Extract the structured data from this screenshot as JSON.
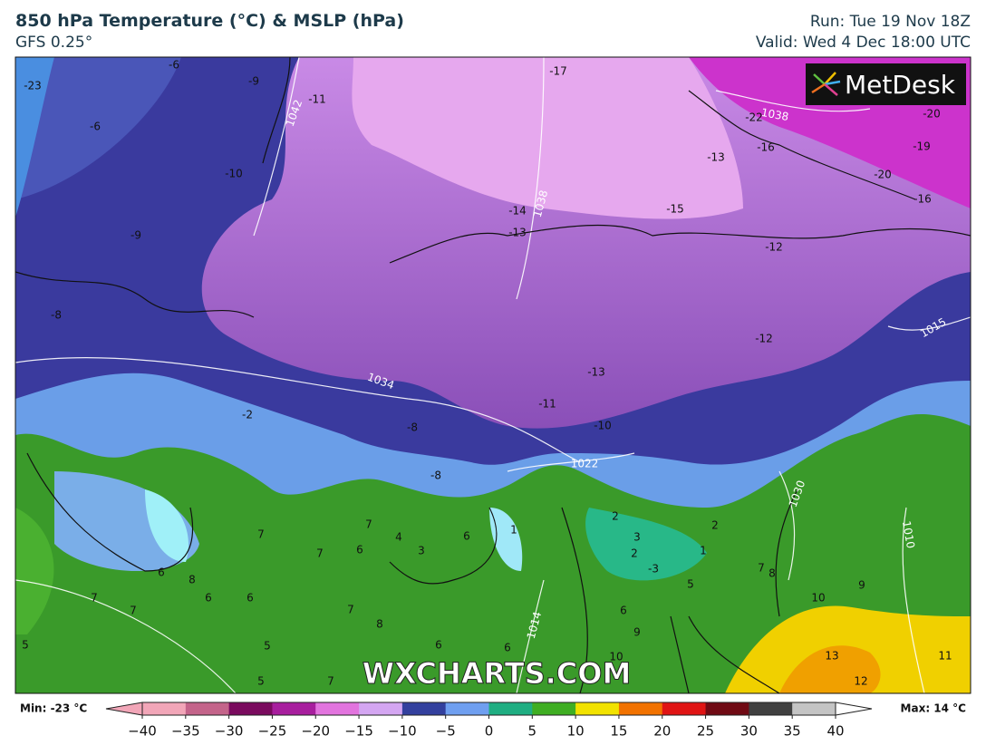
{
  "header": {
    "title": "850 hPa Temperature (°C) & MSLP (hPa)",
    "subtitle": "GFS 0.25°",
    "run": "Run: Tue 19 Nov 18Z",
    "valid": "Valid: Wed 4 Dec 18:00 UTC"
  },
  "logo": "MetDesk",
  "watermark": "WXCHARTS.COM",
  "map_labels": [
    "-6",
    "-9",
    "-23",
    "-11",
    "-6",
    "-10",
    "-17",
    "-22",
    "-20",
    "-19",
    "-16",
    "-13",
    "-20",
    "-16",
    "-14",
    "-15",
    "-13",
    "-12",
    "-9",
    "-8",
    "-12",
    "-13",
    "-11",
    "-10",
    "-8",
    "-2",
    "-8",
    "7",
    "7",
    "7",
    "6",
    "4",
    "3",
    "6",
    "1",
    "2",
    "2",
    "3",
    "2",
    "1",
    "-3",
    "8",
    "6",
    "5",
    "7",
    "8",
    "10",
    "9",
    "7",
    "7",
    "6",
    "6",
    "7",
    "8",
    "6",
    "9",
    "5",
    "5",
    "6",
    "6",
    "10",
    "13",
    "11",
    "12",
    "5",
    "7"
  ],
  "isobar_labels": [
    "1042",
    "1038",
    "1038",
    "1034",
    "1022",
    "1014",
    "1010",
    "1015",
    "1030"
  ],
  "colorbar": {
    "min_label": "Min: -23 °C",
    "max_label": "Max: 14 °C",
    "range": [
      -40,
      40
    ],
    "colors": [
      "#f2a6b8",
      "#c4648a",
      "#7a0a5e",
      "#a81e9e",
      "#e274de",
      "#d4a6f2",
      "#33409e",
      "#6f9ff0",
      "#1fae82",
      "#3fae22",
      "#f2e200",
      "#f27200",
      "#e01414",
      "#700a14",
      "#404040",
      "#c4c4c4"
    ],
    "ticks": [
      {
        "value": -40,
        "label": "−40"
      },
      {
        "value": -35,
        "label": "−35"
      },
      {
        "value": -30,
        "label": "−30"
      },
      {
        "value": -25,
        "label": "−25"
      },
      {
        "value": -20,
        "label": "−20"
      },
      {
        "value": -15,
        "label": "−15"
      },
      {
        "value": -10,
        "label": "−10"
      },
      {
        "value": -5,
        "label": "−5"
      },
      0,
      5,
      10,
      15,
      20,
      25,
      30,
      35,
      40
    ]
  }
}
